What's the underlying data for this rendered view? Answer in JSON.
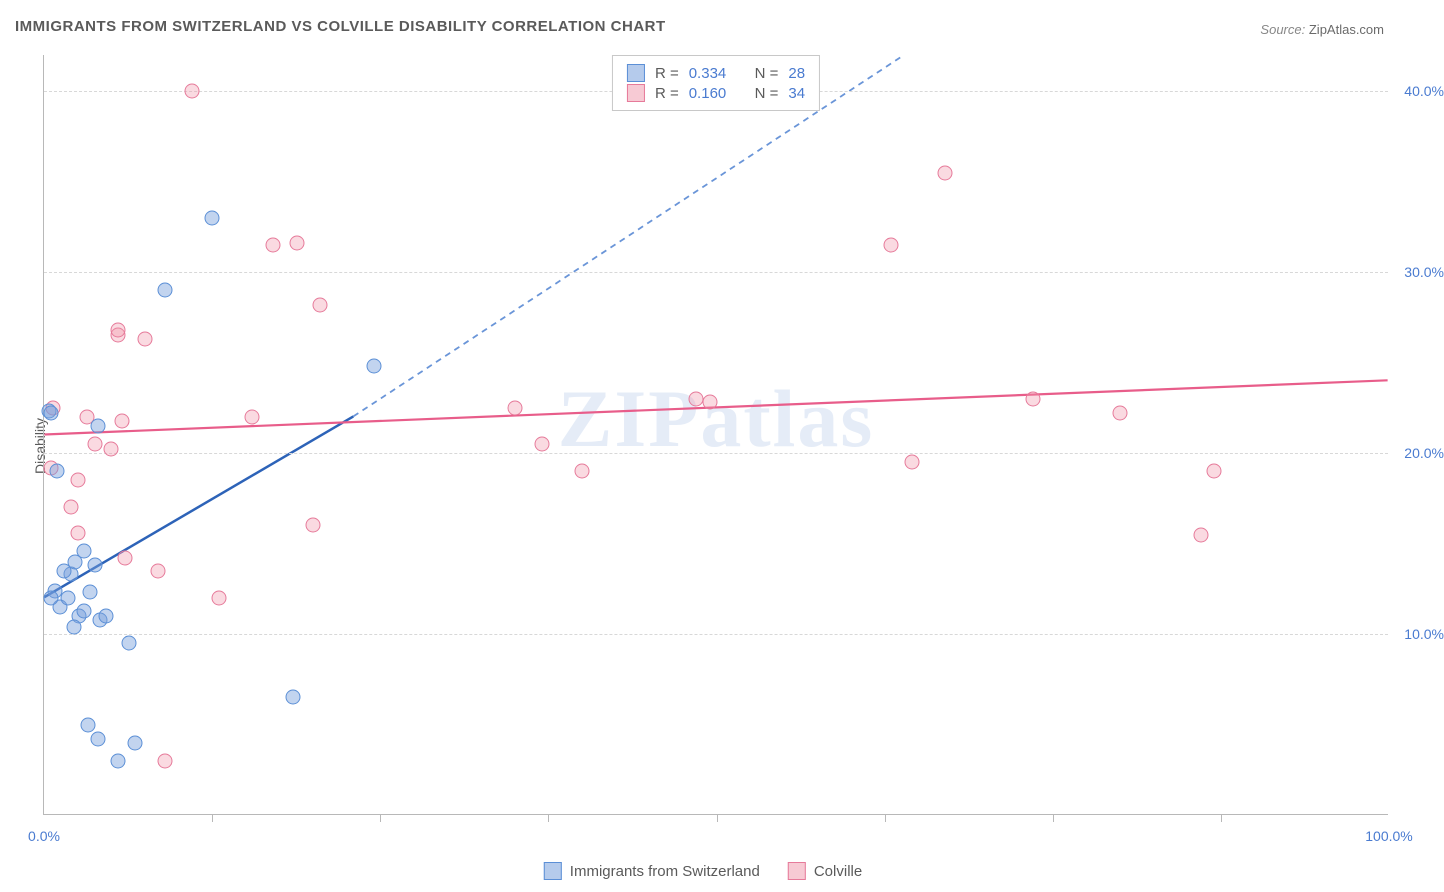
{
  "title": "IMMIGRANTS FROM SWITZERLAND VS COLVILLE DISABILITY CORRELATION CHART",
  "source_label": "Source:",
  "source_name": "ZipAtlas.com",
  "watermark": "ZIPatlas",
  "chart": {
    "type": "scatter",
    "background_color": "#ffffff",
    "grid_color": "#d8d8d8",
    "axis_color": "#b8b8b8",
    "text_color": "#5a5a5a",
    "value_color": "#4a7bd0",
    "marker_size": 15,
    "marker_opacity_blue": 0.45,
    "marker_opacity_pink": 0.35,
    "ylabel": "Disability",
    "xlim": [
      0,
      100
    ],
    "ylim": [
      0,
      42
    ],
    "ytick_values": [
      10,
      20,
      30,
      40
    ],
    "ytick_labels": [
      "10.0%",
      "20.0%",
      "30.0%",
      "40.0%"
    ],
    "xtick_minor_step": 12.5,
    "xtick_label_left": "0.0%",
    "xtick_label_right": "100.0%",
    "series": {
      "blue": {
        "label": "Immigrants from Switzerland",
        "color_fill": "#78a0dc",
        "color_stroke": "#5b8fd6",
        "correlation_R": "0.334",
        "correlation_N": "28",
        "trend": {
          "x1": 0,
          "y1": 12,
          "x2": 23,
          "y2": 22,
          "x2_dash": 64,
          "y2_dash": 42,
          "solid_color": "#2d63b8",
          "dash_color": "#6a95d8",
          "stroke_width": 2.5
        },
        "points": [
          {
            "x": 0.8,
            "y": 12.4
          },
          {
            "x": 1.2,
            "y": 11.5
          },
          {
            "x": 1.8,
            "y": 12.0
          },
          {
            "x": 2.0,
            "y": 13.3
          },
          {
            "x": 2.3,
            "y": 14.0
          },
          {
            "x": 2.6,
            "y": 11.0
          },
          {
            "x": 3.0,
            "y": 11.3
          },
          {
            "x": 3.4,
            "y": 12.3
          },
          {
            "x": 3.0,
            "y": 14.6
          },
          {
            "x": 1.5,
            "y": 13.5
          },
          {
            "x": 0.5,
            "y": 12.0
          },
          {
            "x": 4.2,
            "y": 10.8
          },
          {
            "x": 4.6,
            "y": 11.0
          },
          {
            "x": 1.0,
            "y": 19.0
          },
          {
            "x": 4.0,
            "y": 21.5
          },
          {
            "x": 0.4,
            "y": 22.3
          },
          {
            "x": 0.5,
            "y": 22.2
          },
          {
            "x": 9.0,
            "y": 29.0
          },
          {
            "x": 12.5,
            "y": 33.0
          },
          {
            "x": 6.3,
            "y": 9.5
          },
          {
            "x": 5.5,
            "y": 3.0
          },
          {
            "x": 4.0,
            "y": 4.2
          },
          {
            "x": 6.8,
            "y": 4.0
          },
          {
            "x": 3.3,
            "y": 5.0
          },
          {
            "x": 18.5,
            "y": 6.5
          },
          {
            "x": 24.5,
            "y": 24.8
          },
          {
            "x": 3.8,
            "y": 13.8
          },
          {
            "x": 2.2,
            "y": 10.4
          }
        ]
      },
      "pink": {
        "label": "Colville",
        "color_fill": "#f096aa",
        "color_stroke": "#e67a9a",
        "correlation_R": "0.160",
        "correlation_N": "34",
        "trend": {
          "x1": 0,
          "y1": 21,
          "x2": 100,
          "y2": 24,
          "solid_color": "#e85d8a",
          "stroke_width": 2.2
        },
        "points": [
          {
            "x": 0.5,
            "y": 19.2
          },
          {
            "x": 0.7,
            "y": 22.5
          },
          {
            "x": 2.0,
            "y": 17.0
          },
          {
            "x": 2.5,
            "y": 15.6
          },
          {
            "x": 2.5,
            "y": 18.5
          },
          {
            "x": 3.8,
            "y": 20.5
          },
          {
            "x": 5.0,
            "y": 20.2
          },
          {
            "x": 5.8,
            "y": 21.8
          },
          {
            "x": 5.5,
            "y": 26.5
          },
          {
            "x": 5.5,
            "y": 26.8
          },
          {
            "x": 7.5,
            "y": 26.3
          },
          {
            "x": 6.0,
            "y": 14.2
          },
          {
            "x": 8.5,
            "y": 13.5
          },
          {
            "x": 11.0,
            "y": 40.0
          },
          {
            "x": 13.0,
            "y": 12.0
          },
          {
            "x": 15.5,
            "y": 22.0
          },
          {
            "x": 17.0,
            "y": 31.5
          },
          {
            "x": 20.5,
            "y": 28.2
          },
          {
            "x": 20.0,
            "y": 16.0
          },
          {
            "x": 35.0,
            "y": 22.5
          },
          {
            "x": 37.0,
            "y": 20.5
          },
          {
            "x": 40.0,
            "y": 19.0
          },
          {
            "x": 48.5,
            "y": 23.0
          },
          {
            "x": 49.5,
            "y": 22.8
          },
          {
            "x": 67.0,
            "y": 35.5
          },
          {
            "x": 63.0,
            "y": 31.5
          },
          {
            "x": 64.5,
            "y": 19.5
          },
          {
            "x": 73.5,
            "y": 23.0
          },
          {
            "x": 80.0,
            "y": 22.2
          },
          {
            "x": 87.0,
            "y": 19.0
          },
          {
            "x": 86.0,
            "y": 15.5
          },
          {
            "x": 9.0,
            "y": 3.0
          },
          {
            "x": 18.8,
            "y": 31.6
          },
          {
            "x": 3.2,
            "y": 22.0
          }
        ]
      }
    },
    "legend_top_labels": {
      "R": "R =",
      "N": "N ="
    }
  }
}
